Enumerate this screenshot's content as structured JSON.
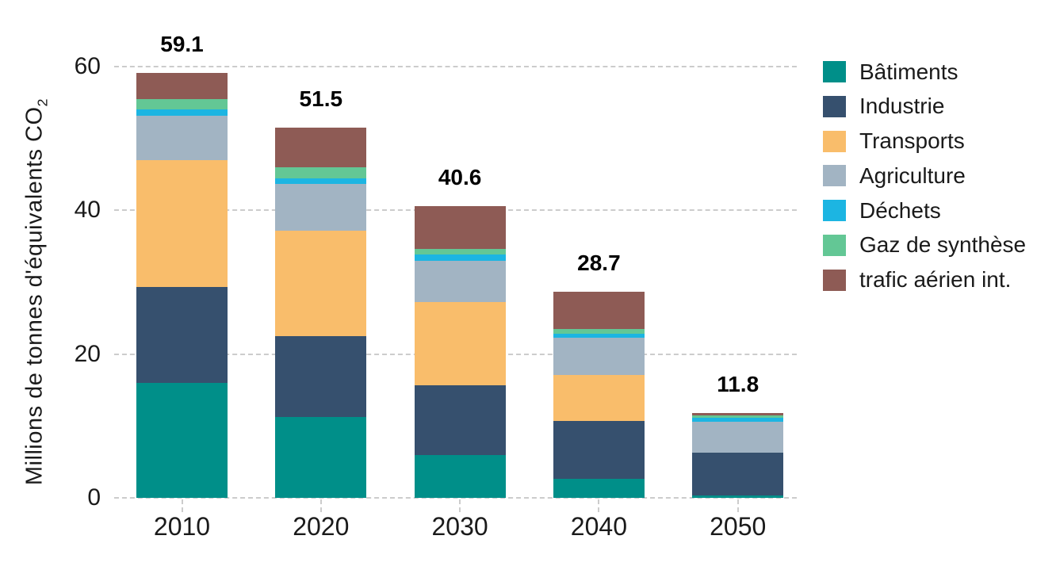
{
  "chart_data": {
    "type": "bar",
    "stacked": true,
    "orientation": "vertical",
    "title": "",
    "ylabel_main": "Millions de tonnes d'équivalents CO",
    "ylabel_sub": "2",
    "categories": [
      "2010",
      "2020",
      "2030",
      "2040",
      "2050"
    ],
    "totals": [
      "59.1",
      "51.5",
      "40.6",
      "28.7",
      "11.8"
    ],
    "ylim": [
      0,
      60
    ],
    "yticks": [
      0,
      20,
      40,
      60
    ],
    "grid": "horizontal-dashed",
    "legend_position": "right",
    "series": [
      {
        "name": "Bâtiments",
        "color": "#008F89",
        "values": [
          16.0,
          11.3,
          6.0,
          2.7,
          0.3
        ]
      },
      {
        "name": "Industrie",
        "color": "#36506E",
        "values": [
          13.3,
          11.2,
          9.7,
          8.0,
          6.0
        ]
      },
      {
        "name": "Transports",
        "color": "#F9BD6B",
        "values": [
          17.7,
          14.7,
          11.5,
          6.4,
          0.0
        ]
      },
      {
        "name": "Agriculture",
        "color": "#A2B4C3",
        "values": [
          6.2,
          6.5,
          5.8,
          5.2,
          4.3
        ]
      },
      {
        "name": "Déchets",
        "color": "#1CB5E2",
        "values": [
          0.9,
          0.8,
          0.9,
          0.5,
          0.5
        ]
      },
      {
        "name": "Gaz de synthèse",
        "color": "#63C795",
        "values": [
          1.4,
          1.5,
          0.7,
          0.7,
          0.4
        ]
      },
      {
        "name": "trafic aérien int.",
        "color": "#8E5B55",
        "values": [
          3.6,
          5.5,
          6.0,
          5.2,
          0.3
        ]
      }
    ],
    "colors": {
      "grid": "#cccccc",
      "text": "#1a1a1a",
      "total_label": "#000000"
    }
  }
}
